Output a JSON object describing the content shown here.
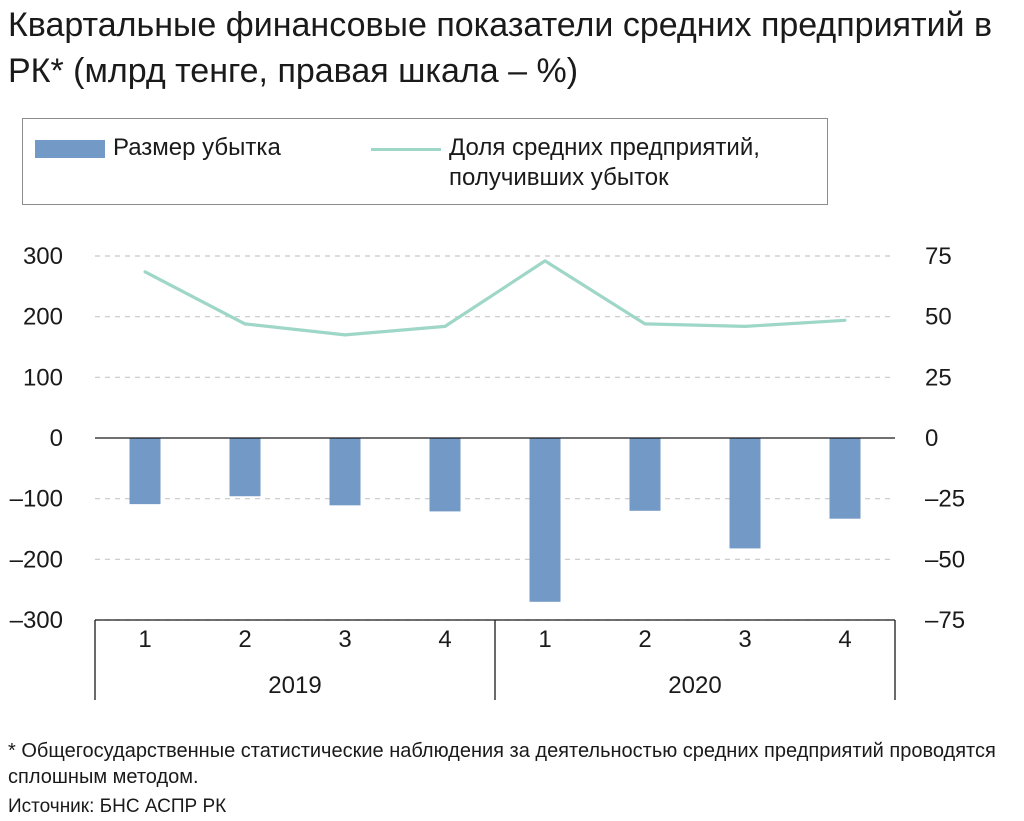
{
  "title": "Квартальные финансовые показатели средних предприятий в РК* (млрд тенге, правая шкала – %)",
  "legend": {
    "bar_label": "Размер убытка",
    "line_label": "Доля средних предприятий,\nполучивших убыток"
  },
  "colors": {
    "bar": "#7399c6",
    "line": "#9ed6c8",
    "grid": "#c8c8c8",
    "axis": "#1a1a1a"
  },
  "chart_data": {
    "type": "bar",
    "categories": [
      "1",
      "2",
      "3",
      "4",
      "1",
      "2",
      "3",
      "4"
    ],
    "groups": [
      {
        "label": "2019",
        "count": 4
      },
      {
        "label": "2020",
        "count": 4
      }
    ],
    "series": [
      {
        "name": "Размер убытка",
        "type": "bar",
        "axis": "left",
        "values": [
          -109,
          -96,
          -111,
          -121,
          -270,
          -120,
          -182,
          -133
        ]
      },
      {
        "name": "Доля средних предприятий, получивших убыток",
        "type": "line",
        "axis": "right",
        "values": [
          68.5,
          47,
          42.5,
          46,
          73,
          47,
          46,
          48.5
        ]
      }
    ],
    "ylim_left": [
      -300,
      300
    ],
    "yticks_left": [
      300,
      200,
      100,
      0,
      -100,
      -200,
      -300
    ],
    "ytick_labels_left": [
      "300",
      "200",
      "100",
      "0",
      "–100",
      "–200",
      "–300"
    ],
    "ylim_right": [
      -75,
      75
    ],
    "yticks_right": [
      75,
      50,
      25,
      0,
      -25,
      -50,
      -75
    ],
    "ytick_labels_right": [
      "75",
      "50",
      "25",
      "0",
      "–25",
      "–50",
      "–75"
    ],
    "grid": true,
    "legend_position": "top"
  },
  "footnote": "* Общегосударственные статистические наблюдения за деятельностью средних предприятий проводятся сплошным методом.",
  "source": "Источник: БНС АСПР РК"
}
